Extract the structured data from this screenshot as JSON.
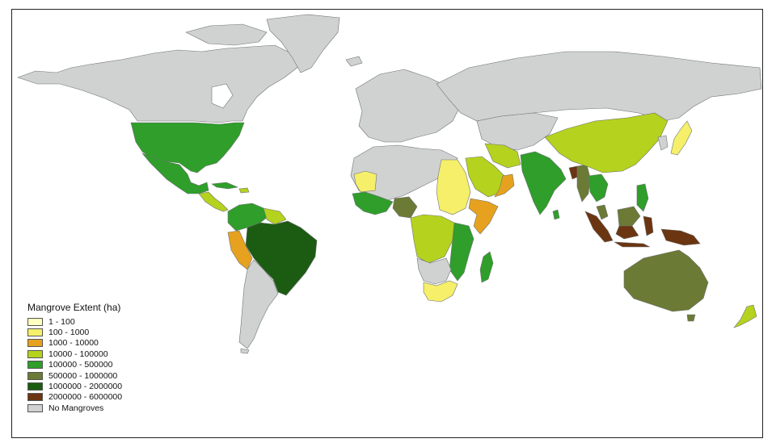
{
  "legend": {
    "title": "Mangrove Extent (ha)",
    "items": [
      {
        "label": "1 - 100",
        "color": "#ffffc0"
      },
      {
        "label": "100 - 1000",
        "color": "#f5ef6a"
      },
      {
        "label": "1000 - 10000",
        "color": "#e6a21e"
      },
      {
        "label": "10000 - 100000",
        "color": "#b5d21e"
      },
      {
        "label": "100000 - 500000",
        "color": "#2f9e2a"
      },
      {
        "label": "500000 - 1000000",
        "color": "#6b7a35"
      },
      {
        "label": "1000000 - 2000000",
        "color": "#1c5c12"
      },
      {
        "label": "2000000 - 6000000",
        "color": "#6b3511"
      },
      {
        "label": "No Mangroves",
        "color": "#d0d2d2"
      }
    ]
  },
  "regions": [
    {
      "name": "Canada / Alaska",
      "class": "No Mangroves"
    },
    {
      "name": "Greenland",
      "class": "No Mangroves"
    },
    {
      "name": "Russia",
      "class": "No Mangroves"
    },
    {
      "name": "Europe",
      "class": "No Mangroves"
    },
    {
      "name": "United States",
      "class": "100000 - 500000"
    },
    {
      "name": "Mexico",
      "class": "100000 - 500000"
    },
    {
      "name": "Central America",
      "class": "10000 - 100000"
    },
    {
      "name": "Cuba",
      "class": "100000 - 500000"
    },
    {
      "name": "Colombia / Venezuela",
      "class": "100000 - 500000"
    },
    {
      "name": "Guianas",
      "class": "10000 - 100000"
    },
    {
      "name": "Brazil",
      "class": "1000000 - 2000000"
    },
    {
      "name": "Peru",
      "class": "1000 - 10000"
    },
    {
      "name": "Southern South America",
      "class": "No Mangroves"
    },
    {
      "name": "North Africa",
      "class": "No Mangroves"
    },
    {
      "name": "Mauritania",
      "class": "100 - 1000"
    },
    {
      "name": "Egypt / Sudan",
      "class": "100 - 1000"
    },
    {
      "name": "West Africa",
      "class": "100000 - 500000"
    },
    {
      "name": "Nigeria",
      "class": "500000 - 1000000"
    },
    {
      "name": "Central Africa",
      "class": "10000 - 100000"
    },
    {
      "name": "Somalia",
      "class": "1000 - 10000"
    },
    {
      "name": "East Africa",
      "class": "100000 - 500000"
    },
    {
      "name": "Madagascar",
      "class": "100000 - 500000"
    },
    {
      "name": "South Africa",
      "class": "100 - 1000"
    },
    {
      "name": "Saudi Arabia",
      "class": "10000 - 100000"
    },
    {
      "name": "Iran",
      "class": "10000 - 100000"
    },
    {
      "name": "India",
      "class": "100000 - 500000"
    },
    {
      "name": "Bangladesh",
      "class": "2000000 - 6000000"
    },
    {
      "name": "Myanmar",
      "class": "500000 - 1000000"
    },
    {
      "name": "China",
      "class": "10000 - 100000"
    },
    {
      "name": "Japan",
      "class": "100 - 1000"
    },
    {
      "name": "Philippines",
      "class": "100000 - 500000"
    },
    {
      "name": "Indonesia",
      "class": "2000000 - 6000000"
    },
    {
      "name": "Malaysia",
      "class": "500000 - 1000000"
    },
    {
      "name": "Papua New Guinea",
      "class": "2000000 - 6000000"
    },
    {
      "name": "Australia",
      "class": "500000 - 1000000"
    },
    {
      "name": "New Zealand",
      "class": "10000 - 100000"
    }
  ]
}
